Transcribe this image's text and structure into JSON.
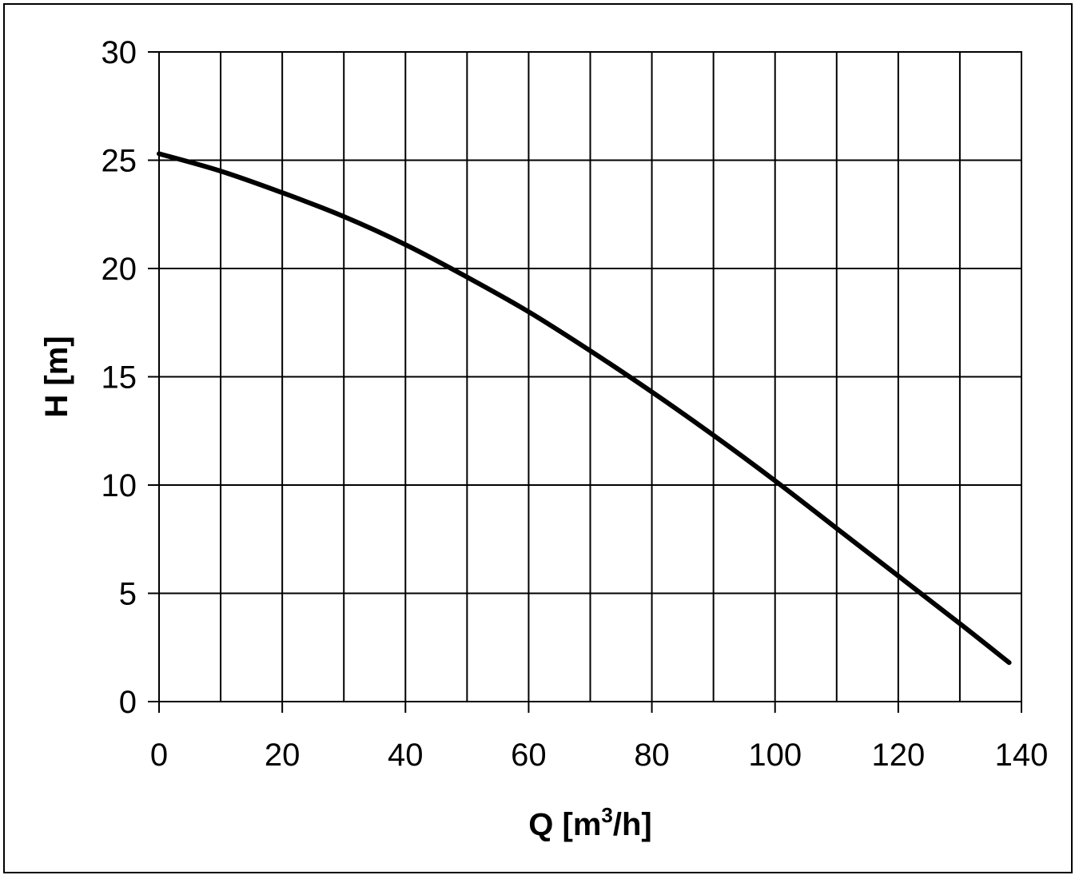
{
  "chart_data": {
    "type": "line",
    "title": "",
    "xlabel": "Q [m3/h]",
    "xlabel_parts": {
      "main": "Q [m",
      "sup": "3",
      "rest": "/h]"
    },
    "ylabel": "H [m]",
    "xlim": [
      0,
      140
    ],
    "ylim": [
      0,
      30
    ],
    "x_ticks": [
      0,
      20,
      40,
      60,
      80,
      100,
      120,
      140
    ],
    "y_ticks": [
      0,
      5,
      10,
      15,
      20,
      25,
      30
    ],
    "x_grid_step": 10,
    "y_grid_step": 5,
    "grid": true,
    "legend": "none",
    "series": [
      {
        "color": "#000000",
        "x": [
          0,
          10,
          20,
          30,
          40,
          50,
          60,
          70,
          80,
          90,
          100,
          110,
          120,
          130,
          138
        ],
        "y": [
          25.3,
          24.5,
          23.5,
          22.4,
          21.1,
          19.6,
          18.0,
          16.2,
          14.3,
          12.3,
          10.2,
          8.0,
          5.8,
          3.6,
          1.8
        ]
      }
    ]
  }
}
